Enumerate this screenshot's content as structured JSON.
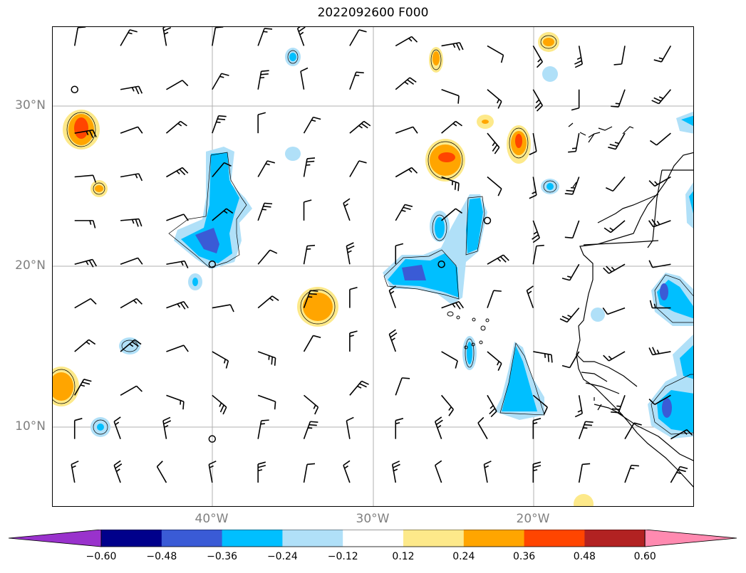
{
  "title": "2022092600 F000",
  "axes": {
    "lat_labels": [
      {
        "text": "30°N",
        "lat": 30
      },
      {
        "text": "20°N",
        "lat": 20
      },
      {
        "text": "10°N",
        "lat": 10
      }
    ],
    "lon_labels": [
      {
        "text": "40°W",
        "lon": -40
      },
      {
        "text": "30°W",
        "lon": -30
      },
      {
        "text": "20°W",
        "lon": -20
      }
    ],
    "lat_range": [
      5,
      35
    ],
    "lon_range": [
      -50,
      -10
    ],
    "gridlines": true
  },
  "colorbar": {
    "tick_labels": [
      "−0.60",
      "−0.48",
      "−0.36",
      "−0.24",
      "−0.12",
      "0.12",
      "0.24",
      "0.36",
      "0.48",
      "0.60"
    ],
    "colors": [
      "#9932cc",
      "#00008b",
      "#3a5bd6",
      "#00bfff",
      "#b0e0f8",
      "#ffffff",
      "#fde98a",
      "#ffa500",
      "#ff4500",
      "#b22222",
      "#ff8ab0"
    ],
    "extend": "both"
  },
  "colors": {
    "grid": "#b0b0b0",
    "coast": "#000000",
    "barb": "#000000"
  }
}
